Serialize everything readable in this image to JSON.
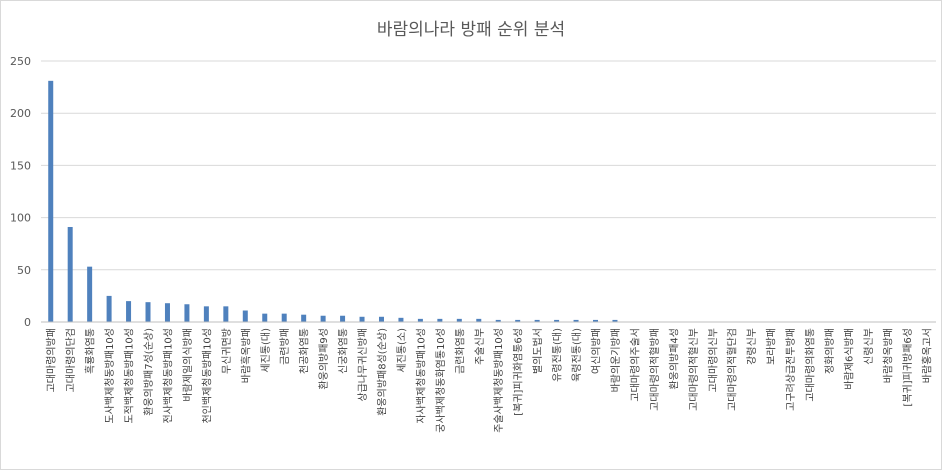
{
  "chart_data": {
    "type": "bar",
    "title": "바람의나라 방패 순위 분석",
    "xlabel": "",
    "ylabel": "",
    "ylim": [
      0,
      250
    ],
    "yticks": [
      0,
      50,
      100,
      150,
      200,
      250
    ],
    "grid": true,
    "legend": "none",
    "bar_color": "#4f81bd",
    "grid_color": "#d9d9d9",
    "categories": [
      "고대마령의방패",
      "고대마령의단검",
      "흑룡화염통",
      "도사백제청동방패10성",
      "도적백제청동방패10성",
      "환웅의방패7성(순상)",
      "전사백제청동방패10성",
      "바람제일의식방패",
      "천인백제청동방패10성",
      "무신귀면방",
      "바람흑옥방패",
      "세진통(대)",
      "금련방패",
      "천공화염통",
      "환웅의방패9성",
      "신궁화염통",
      "상급나무귀신방패",
      "환웅의방패8성(순상)",
      "세진통(소)",
      "자사백제청동방패10성",
      "궁사백제청동화염통10성",
      "금련화염통",
      "주술신부",
      "주술사백제청동방패10성",
      "[복귀]피귀화염통6성",
      "별의도법서",
      "유령전통(대)",
      "육령전통(대)",
      "여신의방패",
      "바람의운기방패",
      "고대마령의주술서",
      "고대마령의적혈방패",
      "환웅의방패4성",
      "고대마령의적혈신부",
      "고대마령의신부",
      "고대마령의적혈단검",
      "강령신부",
      "보라방패",
      "고구려상급전투방패",
      "고대마령의화염통",
      "정화의방패",
      "바람제6식방패",
      "신령신부",
      "바람청옥방패",
      "[복귀]피귀방패6성",
      "바람홍옥고서"
    ],
    "values": [
      231,
      91,
      53,
      25,
      20,
      19,
      18,
      17,
      15,
      15,
      11,
      8,
      8,
      7,
      6,
      6,
      5,
      5,
      4,
      3,
      3,
      3,
      3,
      2,
      2,
      2,
      2,
      2,
      2,
      2,
      0,
      0,
      0,
      0,
      0,
      0,
      0,
      0,
      0,
      0,
      0,
      0,
      0,
      0,
      0,
      0
    ]
  }
}
